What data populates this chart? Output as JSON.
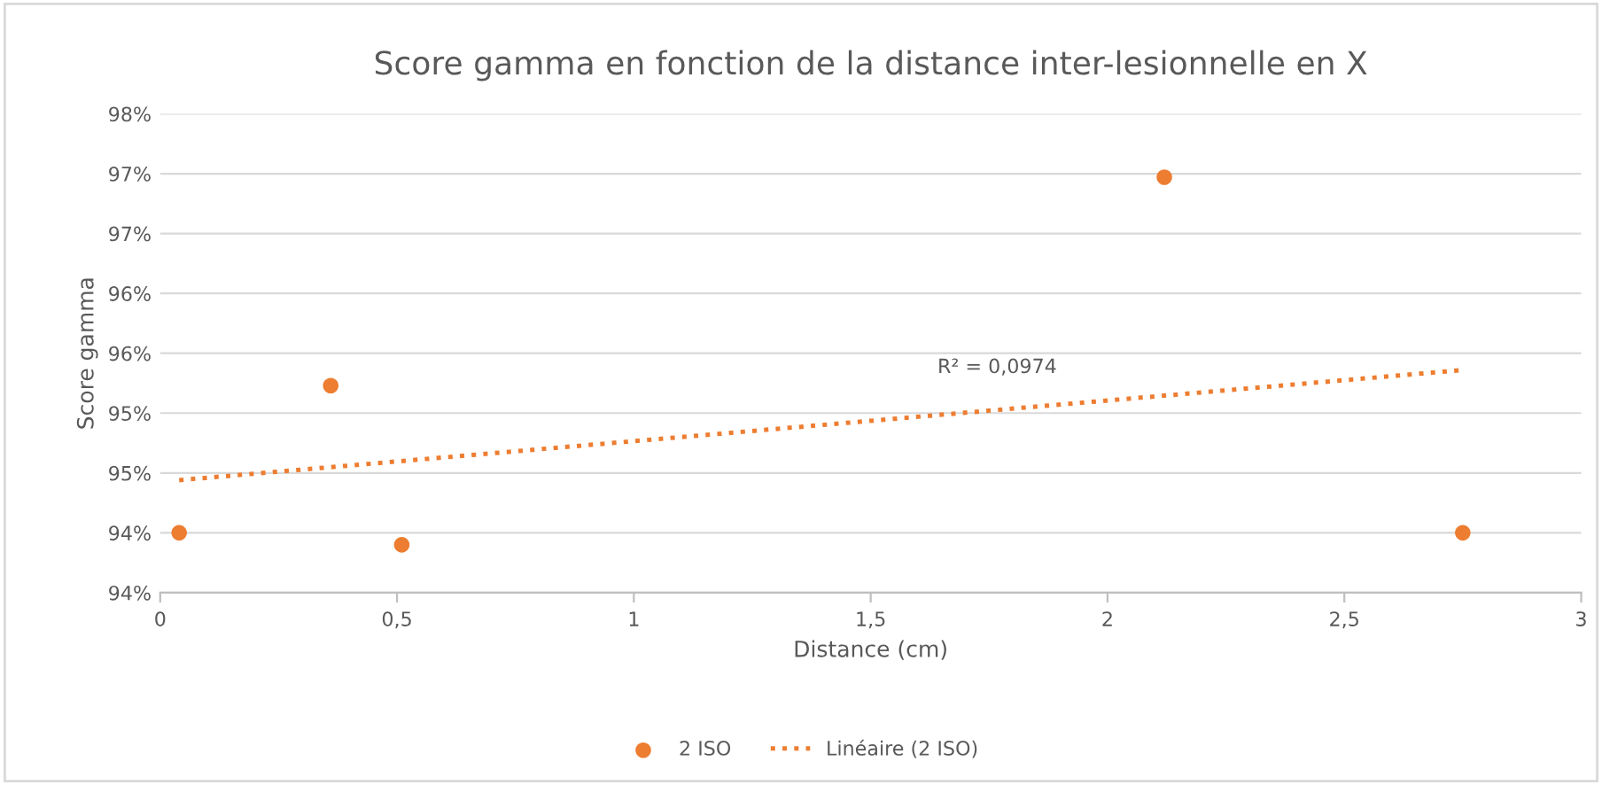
{
  "chart_data": {
    "type": "scatter",
    "title": "Score gamma en fonction de la distance inter-lesionnelle en X",
    "xlabel": "Distance (cm)",
    "ylabel": "Score gamma",
    "series": [
      {
        "name": "2 ISO",
        "color": "#ed7d31",
        "marker": "circle",
        "x": [
          0.04,
          0.36,
          0.51,
          2.12,
          2.75
        ],
        "values": [
          94.0,
          95.23,
          93.9,
          96.97,
          94.0
        ]
      },
      {
        "name": "Linéaire (2 ISO)",
        "type": "line",
        "color": "#ed7d31",
        "line_style": "dotted",
        "marker": "none",
        "x": [
          0.04,
          2.75
        ],
        "values": [
          94.44,
          95.36
        ]
      }
    ],
    "xlim": [
      0,
      3
    ],
    "xticks": [
      0,
      {
        "value": 0.5,
        "label": "0,5"
      },
      1,
      {
        "value": 1.5,
        "label": "1,5"
      },
      2,
      {
        "value": 2.5,
        "label": "2,5"
      },
      3
    ],
    "ylim": [
      93.5,
      97.5
    ],
    "yticks": [
      {
        "value": 93.5,
        "label": "94%"
      },
      {
        "value": 94,
        "label": "94%"
      },
      {
        "value": 94.5,
        "label": "95%"
      },
      {
        "value": 95,
        "label": "95%"
      },
      {
        "value": 95.5,
        "label": "96%"
      },
      {
        "value": 96,
        "label": "96%"
      },
      {
        "value": 96.5,
        "label": "97%"
      },
      {
        "value": 97,
        "label": "97%"
      },
      {
        "value": 97.5,
        "label": "98%"
      }
    ],
    "annotations": [
      "R² = 0,0974"
    ],
    "grid": "y",
    "legend": "bottom"
  }
}
